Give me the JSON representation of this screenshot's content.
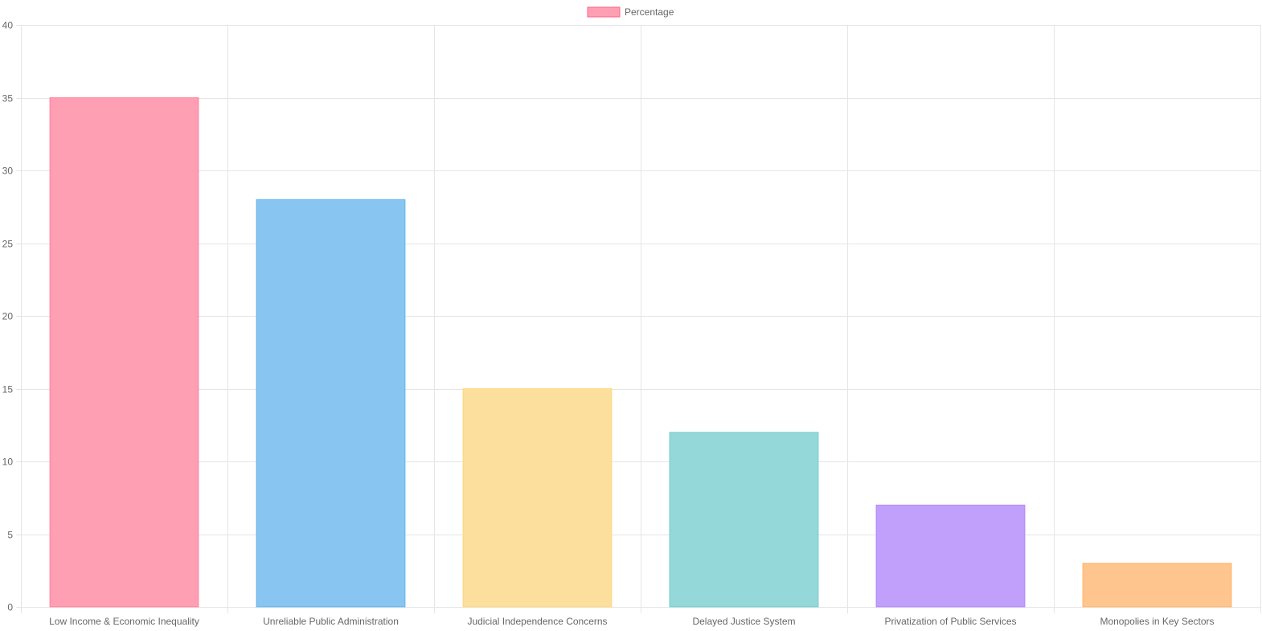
{
  "chart_data": {
    "type": "bar",
    "legend": {
      "label": "Percentage",
      "position": "top-center"
    },
    "categories": [
      "Low Income & Economic Inequality",
      "Unreliable Public Administration",
      "Judicial Independence Concerns",
      "Delayed Justice System",
      "Privatization of Public Services",
      "Monopolies in Key Sectors"
    ],
    "series": [
      {
        "name": "Percentage",
        "values": [
          35,
          28,
          15,
          12,
          7,
          3
        ]
      }
    ],
    "ylim": [
      0,
      40
    ],
    "yticks": [
      0,
      5,
      10,
      15,
      20,
      25,
      30,
      35,
      40
    ],
    "grid": true,
    "colors": {
      "fills": [
        "#ff9fb4",
        "#88c5f1",
        "#fcdf9c",
        "#95d8d9",
        "#c1a0fc",
        "#ffc58f"
      ],
      "borders": [
        "#ff6384",
        "#36a2eb",
        "#ffce56",
        "#4bc0c0",
        "#9966ff",
        "#ff9f40"
      ],
      "grid": "#e5e5e5",
      "text": "#666666"
    }
  }
}
